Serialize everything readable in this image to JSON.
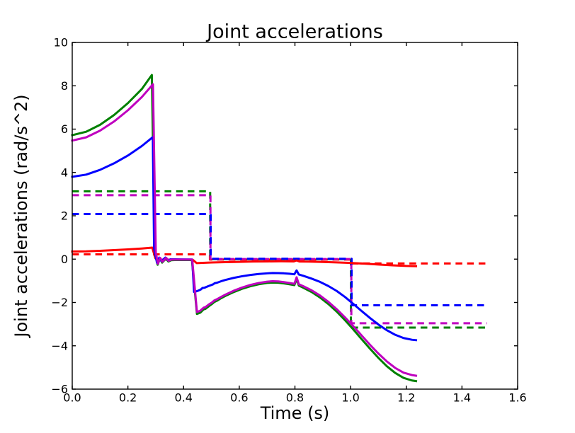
{
  "figure": {
    "background": "#ffffff",
    "frame_color": "#000000"
  },
  "chart_data": {
    "type": "line",
    "title": "Joint accelerations",
    "xlabel": "Time (s)",
    "ylabel": "Joint accelerations (rad/s^2)",
    "xlim": [
      0.0,
      1.6
    ],
    "ylim": [
      -6,
      10
    ],
    "xticks": [
      0.0,
      0.2,
      0.4,
      0.6,
      0.8,
      1.0,
      1.2,
      1.4,
      1.6
    ],
    "xtick_labels": [
      "0.0",
      "0.2",
      "0.4",
      "0.6",
      "0.8",
      "1.0",
      "1.2",
      "1.4",
      "1.6"
    ],
    "yticks": [
      -6,
      -4,
      -2,
      0,
      2,
      4,
      6,
      8,
      10
    ],
    "ytick_labels": [
      "−6",
      "−4",
      "−2",
      "0",
      "2",
      "4",
      "6",
      "8",
      "10"
    ],
    "grid": false,
    "legend": null,
    "series": [
      {
        "id": "commanded-red-dashed",
        "color": "#ff0000",
        "style": "dashed",
        "points": [
          [
            0.0,
            0.22
          ],
          [
            0.4945,
            0.22
          ],
          [
            0.4945,
            -0.02
          ],
          [
            1.0,
            -0.02
          ],
          [
            1.0,
            -0.2
          ],
          [
            1.49,
            -0.2
          ]
        ]
      },
      {
        "id": "commanded-green-dashed",
        "color": "#008000",
        "style": "dashed",
        "points": [
          [
            0.0,
            3.13
          ],
          [
            0.4955,
            3.13
          ],
          [
            0.4955,
            0.0
          ],
          [
            1.001,
            0.0
          ],
          [
            1.001,
            -3.16
          ],
          [
            1.49,
            -3.16
          ]
        ]
      },
      {
        "id": "commanded-magenta-dashed",
        "color": "#bf00bf",
        "style": "dashed",
        "points": [
          [
            0.0,
            2.95
          ],
          [
            0.4965,
            2.95
          ],
          [
            0.4965,
            0.005
          ],
          [
            1.0025,
            0.005
          ],
          [
            1.0025,
            -2.96
          ],
          [
            1.49,
            -2.96
          ]
        ]
      },
      {
        "id": "commanded-blue-dashed",
        "color": "#0000ff",
        "style": "dashed",
        "points": [
          [
            0.0,
            2.08
          ],
          [
            0.4975,
            2.08
          ],
          [
            0.4975,
            0.015
          ],
          [
            1.0035,
            0.015
          ],
          [
            1.0035,
            -2.13
          ],
          [
            1.49,
            -2.13
          ]
        ]
      },
      {
        "id": "actual-red-solid",
        "color": "#ff0000",
        "style": "solid",
        "points": [
          [
            0.0,
            0.35
          ],
          [
            0.05,
            0.36
          ],
          [
            0.1,
            0.385
          ],
          [
            0.15,
            0.415
          ],
          [
            0.2,
            0.45
          ],
          [
            0.25,
            0.49
          ],
          [
            0.2875,
            0.53
          ],
          [
            0.2985,
            0.04
          ],
          [
            0.304,
            -0.02
          ],
          [
            0.31,
            -0.025
          ],
          [
            0.35,
            -0.025
          ],
          [
            0.4,
            -0.03
          ],
          [
            0.434,
            -0.04
          ],
          [
            0.447,
            -0.185
          ],
          [
            0.5,
            -0.155
          ],
          [
            0.55,
            -0.14
          ],
          [
            0.6,
            -0.125
          ],
          [
            0.65,
            -0.112
          ],
          [
            0.7,
            -0.105
          ],
          [
            0.75,
            -0.1
          ],
          [
            0.796,
            -0.105
          ],
          [
            0.806,
            -0.06
          ],
          [
            0.816,
            -0.11
          ],
          [
            0.85,
            -0.115
          ],
          [
            0.9,
            -0.13
          ],
          [
            0.95,
            -0.15
          ],
          [
            1.0,
            -0.175
          ],
          [
            1.05,
            -0.21
          ],
          [
            1.1,
            -0.25
          ],
          [
            1.15,
            -0.285
          ],
          [
            1.2,
            -0.315
          ],
          [
            1.235,
            -0.325
          ]
        ]
      },
      {
        "id": "actual-green-solid",
        "color": "#008000",
        "style": "solid",
        "points": [
          [
            0.0,
            5.72
          ],
          [
            0.05,
            5.88
          ],
          [
            0.1,
            6.2
          ],
          [
            0.15,
            6.65
          ],
          [
            0.2,
            7.2
          ],
          [
            0.25,
            7.85
          ],
          [
            0.286,
            8.5
          ],
          [
            0.2965,
            0.3
          ],
          [
            0.3068,
            -0.26
          ],
          [
            0.315,
            0.03
          ],
          [
            0.323,
            -0.16
          ],
          [
            0.3365,
            0.03
          ],
          [
            0.3455,
            -0.11
          ],
          [
            0.3555,
            -0.05
          ],
          [
            0.37,
            -0.04
          ],
          [
            0.43,
            -0.04
          ],
          [
            0.448,
            -2.53
          ],
          [
            0.46,
            -2.47
          ],
          [
            0.472,
            -2.32
          ],
          [
            0.478,
            -2.3
          ],
          [
            0.49,
            -2.18
          ],
          [
            0.503,
            -2.06
          ],
          [
            0.51,
            -1.98
          ],
          [
            0.52,
            -1.92
          ],
          [
            0.535,
            -1.8
          ],
          [
            0.55,
            -1.7
          ],
          [
            0.58,
            -1.52
          ],
          [
            0.61,
            -1.37
          ],
          [
            0.64,
            -1.25
          ],
          [
            0.67,
            -1.16
          ],
          [
            0.7,
            -1.1
          ],
          [
            0.72,
            -1.08
          ],
          [
            0.74,
            -1.09
          ],
          [
            0.76,
            -1.12
          ],
          [
            0.78,
            -1.16
          ],
          [
            0.798,
            -1.2
          ],
          [
            0.806,
            -0.92
          ],
          [
            0.814,
            -1.22
          ],
          [
            0.83,
            -1.32
          ],
          [
            0.86,
            -1.52
          ],
          [
            0.89,
            -1.77
          ],
          [
            0.92,
            -2.07
          ],
          [
            0.95,
            -2.42
          ],
          [
            0.98,
            -2.82
          ],
          [
            1.01,
            -3.25
          ],
          [
            1.04,
            -3.7
          ],
          [
            1.07,
            -4.14
          ],
          [
            1.1,
            -4.56
          ],
          [
            1.13,
            -4.94
          ],
          [
            1.16,
            -5.25
          ],
          [
            1.19,
            -5.48
          ],
          [
            1.22,
            -5.6
          ],
          [
            1.235,
            -5.63
          ]
        ]
      },
      {
        "id": "actual-blue-solid",
        "color": "#0000ff",
        "style": "solid",
        "points": [
          [
            0.0,
            3.8
          ],
          [
            0.05,
            3.9
          ],
          [
            0.1,
            4.12
          ],
          [
            0.15,
            4.42
          ],
          [
            0.2,
            4.78
          ],
          [
            0.25,
            5.22
          ],
          [
            0.2895,
            5.63
          ],
          [
            0.294,
            0.5
          ],
          [
            0.3045,
            -0.17
          ],
          [
            0.3125,
            0.07
          ],
          [
            0.3205,
            -0.09
          ],
          [
            0.3345,
            0.07
          ],
          [
            0.3435,
            -0.05
          ],
          [
            0.353,
            -0.01
          ],
          [
            0.37,
            -0.01
          ],
          [
            0.431,
            -0.018
          ],
          [
            0.4376,
            -1.51
          ],
          [
            0.45,
            -1.47
          ],
          [
            0.462,
            -1.4
          ],
          [
            0.468,
            -1.33
          ],
          [
            0.475,
            -1.32
          ],
          [
            0.49,
            -1.24
          ],
          [
            0.505,
            -1.17
          ],
          [
            0.512,
            -1.11
          ],
          [
            0.52,
            -1.09
          ],
          [
            0.535,
            -1.02
          ],
          [
            0.55,
            -0.96
          ],
          [
            0.58,
            -0.865
          ],
          [
            0.61,
            -0.79
          ],
          [
            0.64,
            -0.73
          ],
          [
            0.67,
            -0.685
          ],
          [
            0.7,
            -0.655
          ],
          [
            0.72,
            -0.64
          ],
          [
            0.74,
            -0.645
          ],
          [
            0.76,
            -0.655
          ],
          [
            0.78,
            -0.675
          ],
          [
            0.798,
            -0.7
          ],
          [
            0.806,
            -0.52
          ],
          [
            0.814,
            -0.71
          ],
          [
            0.83,
            -0.77
          ],
          [
            0.86,
            -0.9
          ],
          [
            0.89,
            -1.05
          ],
          [
            0.92,
            -1.24
          ],
          [
            0.95,
            -1.47
          ],
          [
            0.98,
            -1.75
          ],
          [
            1.01,
            -2.07
          ],
          [
            1.04,
            -2.4
          ],
          [
            1.07,
            -2.72
          ],
          [
            1.1,
            -3.02
          ],
          [
            1.13,
            -3.28
          ],
          [
            1.16,
            -3.49
          ],
          [
            1.19,
            -3.64
          ],
          [
            1.22,
            -3.72
          ],
          [
            1.235,
            -3.74
          ]
        ]
      },
      {
        "id": "actual-magenta-solid",
        "color": "#bf00bf",
        "style": "solid",
        "points": [
          [
            0.0,
            5.47
          ],
          [
            0.05,
            5.62
          ],
          [
            0.1,
            5.93
          ],
          [
            0.15,
            6.35
          ],
          [
            0.2,
            6.87
          ],
          [
            0.25,
            7.48
          ],
          [
            0.29,
            8.07
          ],
          [
            0.3002,
            0.3
          ],
          [
            0.3078,
            -0.21
          ],
          [
            0.3157,
            0.06
          ],
          [
            0.3238,
            -0.12
          ],
          [
            0.3375,
            0.06
          ],
          [
            0.3464,
            -0.08
          ],
          [
            0.356,
            -0.02
          ],
          [
            0.37,
            -0.022
          ],
          [
            0.431,
            -0.022
          ],
          [
            0.448,
            -2.44
          ],
          [
            0.46,
            -2.38
          ],
          [
            0.472,
            -2.24
          ],
          [
            0.478,
            -2.22
          ],
          [
            0.49,
            -2.1
          ],
          [
            0.503,
            -1.99
          ],
          [
            0.51,
            -1.91
          ],
          [
            0.52,
            -1.85
          ],
          [
            0.535,
            -1.74
          ],
          [
            0.55,
            -1.64
          ],
          [
            0.58,
            -1.46
          ],
          [
            0.61,
            -1.31
          ],
          [
            0.64,
            -1.19
          ],
          [
            0.67,
            -1.1
          ],
          [
            0.7,
            -1.04
          ],
          [
            0.72,
            -1.02
          ],
          [
            0.74,
            -1.03
          ],
          [
            0.76,
            -1.06
          ],
          [
            0.78,
            -1.1
          ],
          [
            0.798,
            -1.14
          ],
          [
            0.806,
            -0.84
          ],
          [
            0.814,
            -1.16
          ],
          [
            0.83,
            -1.25
          ],
          [
            0.86,
            -1.44
          ],
          [
            0.89,
            -1.68
          ],
          [
            0.92,
            -1.97
          ],
          [
            0.95,
            -2.31
          ],
          [
            0.98,
            -2.69
          ],
          [
            1.01,
            -3.1
          ],
          [
            1.04,
            -3.53
          ],
          [
            1.07,
            -3.96
          ],
          [
            1.1,
            -4.36
          ],
          [
            1.13,
            -4.72
          ],
          [
            1.16,
            -5.02
          ],
          [
            1.19,
            -5.24
          ],
          [
            1.22,
            -5.35
          ],
          [
            1.235,
            -5.38
          ]
        ]
      }
    ]
  }
}
